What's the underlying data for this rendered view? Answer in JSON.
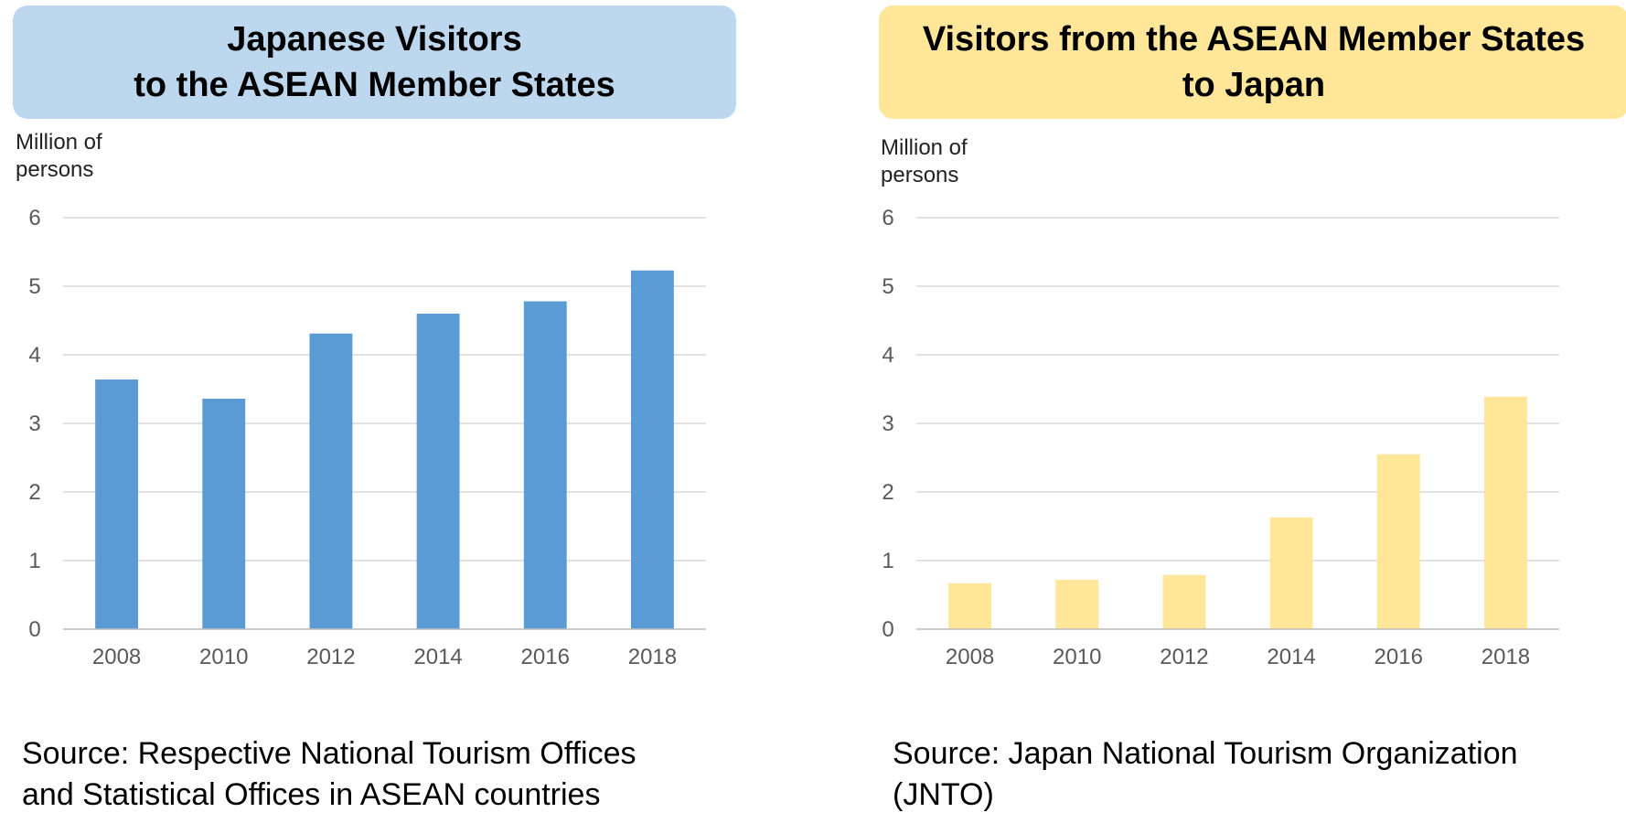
{
  "charts": {
    "left": {
      "title_lines": [
        "Japanese Visitors",
        "to the ASEAN Member States"
      ],
      "title_bg": "#BDD7EE",
      "unit_label": "Million of\npersons",
      "source_lines": [
        "Source: Respective National Tourism Offices",
        "and Statistical Offices in ASEAN countries"
      ]
    },
    "right": {
      "title_lines": [
        "Visitors from the ASEAN Member States",
        "to Japan"
      ],
      "title_bg": "#FFE699",
      "unit_label": "Million of\npersons",
      "source_lines": [
        "Source: Japan National Tourism Organization",
        "(JNTO)"
      ]
    }
  },
  "chart_data": [
    {
      "type": "bar",
      "title": "Japanese Visitors to the ASEAN Member States",
      "xlabel": "",
      "ylabel": "Million of persons",
      "categories": [
        "2008",
        "2010",
        "2012",
        "2014",
        "2016",
        "2018"
      ],
      "values": [
        3.64,
        3.36,
        4.31,
        4.6,
        4.78,
        5.23
      ],
      "ylim": [
        0,
        6
      ],
      "yticks": [
        0,
        1,
        2,
        3,
        4,
        5,
        6
      ],
      "grid": true,
      "bar_color": "#5B9BD5"
    },
    {
      "type": "bar",
      "title": "Visitors from the ASEAN Member States to Japan",
      "xlabel": "",
      "ylabel": "Million of persons",
      "categories": [
        "2008",
        "2010",
        "2012",
        "2014",
        "2016",
        "2018"
      ],
      "values": [
        0.67,
        0.72,
        0.79,
        1.63,
        2.55,
        3.39
      ],
      "ylim": [
        0,
        6
      ],
      "yticks": [
        0,
        1,
        2,
        3,
        4,
        5,
        6
      ],
      "grid": true,
      "bar_color": "#FFE699"
    }
  ]
}
